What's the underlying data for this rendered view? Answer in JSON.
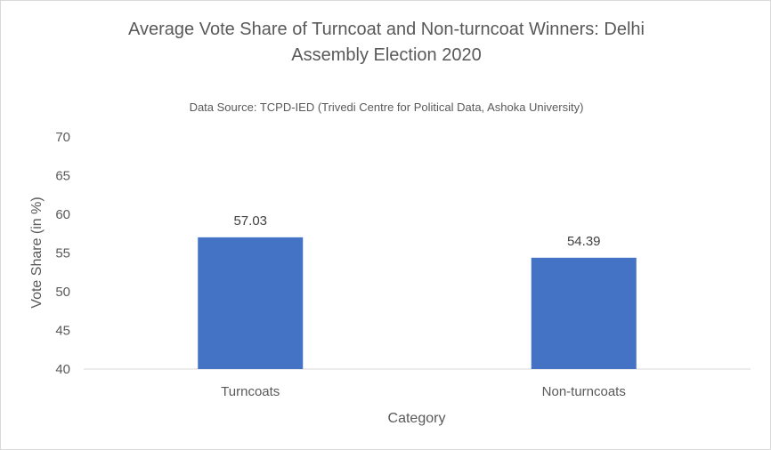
{
  "chart_data": {
    "type": "bar",
    "title_lines": [
      "Average Vote Share of Turncoat and Non-turncoat Winners: Delhi",
      "Assembly Election 2020"
    ],
    "subtitle": "Data Source: TCPD-IED (Trivedi Centre for Political Data,  Ashoka University)",
    "categories": [
      "Turncoats",
      "Non-turncoats"
    ],
    "values": [
      57.03,
      54.39
    ],
    "data_labels": [
      "57.03",
      "54.39"
    ],
    "xlabel": "Category",
    "ylabel": "Vote Share (in %)",
    "ylim": [
      40,
      70
    ],
    "yticks": [
      40,
      45,
      50,
      55,
      60,
      65,
      70
    ],
    "grid": false,
    "legend": "none",
    "bar_color": "#4472c4",
    "axis_color": "#d9d9d9"
  }
}
